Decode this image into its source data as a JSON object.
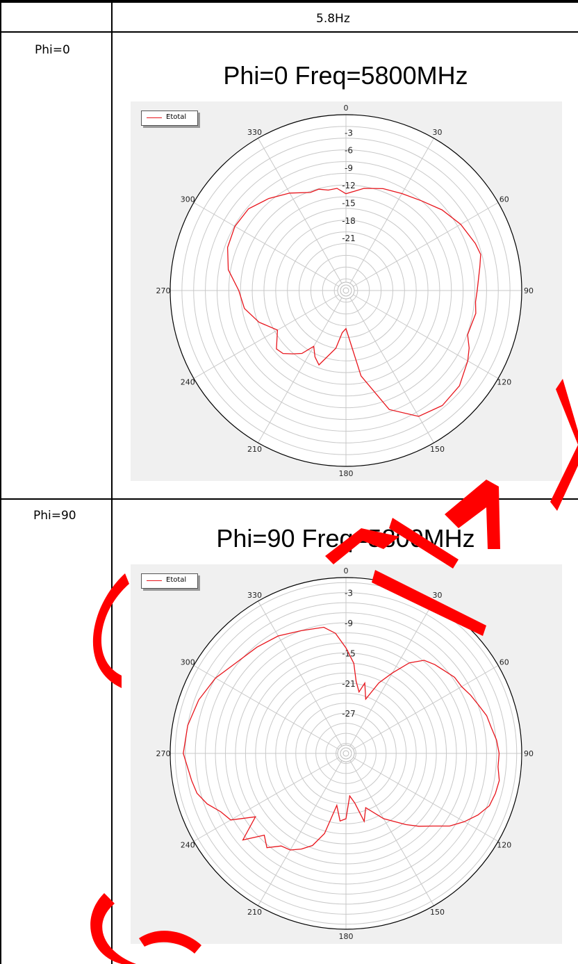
{
  "table": {
    "header": "5.8Hz",
    "rows": [
      {
        "label": "Phi=0"
      },
      {
        "label": "Phi=90"
      }
    ]
  },
  "colors": {
    "series": "#e8141b",
    "grid": "#c8c8c8",
    "panel": "#f0f0f0",
    "watermark": "#ff0000"
  },
  "chart_data": [
    {
      "type": "polar-line",
      "title": "Phi=0 Freq=5800MHz",
      "angle_ticks": [
        "0",
        "30",
        "60",
        "90",
        "120",
        "150",
        "180",
        "210",
        "240",
        "270",
        "300",
        "330"
      ],
      "radial_ticks": [
        "0",
        "-3",
        "-6",
        "-9",
        "-12",
        "-15",
        "-18",
        "-21"
      ],
      "rlim": [
        -30,
        0
      ],
      "legend": "top-left",
      "series": [
        {
          "name": "Etotal",
          "theta": [
            0,
            10,
            20,
            30,
            40,
            50,
            60,
            70,
            75,
            80,
            90,
            95,
            100,
            105,
            110,
            115,
            120,
            130,
            140,
            150,
            160,
            170,
            180,
            185,
            190,
            200,
            205,
            210,
            215,
            220,
            225,
            230,
            240,
            250,
            260,
            270,
            280,
            290,
            300,
            310,
            320,
            330,
            340,
            345,
            350,
            355,
            360
          ],
          "r": [
            -13.5,
            -12.3,
            -11.5,
            -10.9,
            -10.0,
            -8.6,
            -7.4,
            -6.5,
            -6.2,
            -6.8,
            -7.6,
            -7.8,
            -7.5,
            -7.8,
            -7.9,
            -6.8,
            -6.0,
            -4.7,
            -4.4,
            -5.2,
            -8.4,
            -15.2,
            -23.5,
            -22.8,
            -20.0,
            -16.5,
            -17.5,
            -19.0,
            -16.9,
            -15.9,
            -14.8,
            -14.5,
            -16.5,
            -14.2,
            -12.4,
            -11.7,
            -9.6,
            -8.5,
            -8.1,
            -8.3,
            -9.5,
            -10.8,
            -12.2,
            -12.1,
            -12.6,
            -12.5,
            -13.5
          ]
        }
      ]
    },
    {
      "type": "polar-line",
      "title": "Phi=90 Freq=5800MHz",
      "angle_ticks": [
        "0",
        "30",
        "60",
        "90",
        "120",
        "150",
        "180",
        "210",
        "240",
        "270",
        "300",
        "330"
      ],
      "radial_ticks": [
        "0",
        "-3",
        "-9",
        "-15",
        "-21",
        "-27"
      ],
      "rlim": [
        -35,
        0
      ],
      "legend": "top-left",
      "series": [
        {
          "name": "Etotal",
          "theta": [
            0,
            5,
            8,
            12,
            15,
            20,
            25,
            30,
            35,
            40,
            45,
            50,
            55,
            60,
            65,
            70,
            75,
            80,
            85,
            90,
            95,
            100,
            105,
            110,
            115,
            120,
            125,
            130,
            135,
            140,
            150,
            160,
            165,
            170,
            175,
            180,
            185,
            190,
            195,
            200,
            205,
            210,
            215,
            220,
            225,
            230,
            235,
            240,
            245,
            250,
            255,
            260,
            270,
            280,
            290,
            300,
            310,
            320,
            330,
            340,
            350,
            355,
            360
          ],
          "r": [
            -14.0,
            -17.0,
            -20.5,
            -22.5,
            -20.5,
            -23.5,
            -19.5,
            -16.5,
            -13.0,
            -10.8,
            -10.0,
            -9.4,
            -8.6,
            -8.4,
            -7.6,
            -6.9,
            -6.0,
            -5.6,
            -4.9,
            -4.5,
            -4.6,
            -4.0,
            -4.2,
            -4.6,
            -6.0,
            -7.8,
            -9.8,
            -12.5,
            -14.5,
            -16.5,
            -20.0,
            -23.5,
            -21.0,
            -25.0,
            -26.5,
            -22.0,
            -21.5,
            -24.5,
            -18.5,
            -15.5,
            -14.0,
            -12.8,
            -12.5,
            -10.5,
            -12.0,
            -8.2,
            -13.0,
            -8.5,
            -7.5,
            -5.6,
            -4.3,
            -3.8,
            -2.6,
            -3.0,
            -3.8,
            -5.0,
            -6.7,
            -7.4,
            -8.0,
            -9.0,
            -9.5,
            -11.0,
            -14.0
          ]
        }
      ]
    }
  ]
}
